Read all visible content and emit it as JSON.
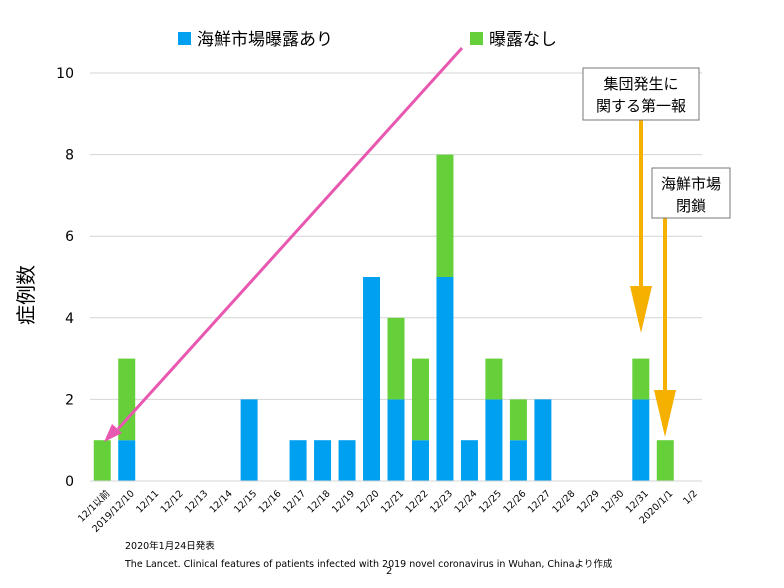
{
  "chart_data": {
    "type": "bar",
    "stacked": true,
    "ylabel": "症例数",
    "ylim": [
      0,
      10
    ],
    "yticks": [
      0,
      2,
      4,
      6,
      8,
      10
    ],
    "grid": true,
    "legend_position": "top",
    "categories": [
      "12/1以前",
      "2019/12/10",
      "12/11",
      "12/12",
      "12/13",
      "12/14",
      "12/15",
      "12/16",
      "12/17",
      "12/18",
      "12/19",
      "12/20",
      "12/21",
      "12/22",
      "12/23",
      "12/24",
      "12/25",
      "12/26",
      "12/27",
      "12/28",
      "12/29",
      "12/30",
      "12/31",
      "2020/1/1",
      "1/2"
    ],
    "series": [
      {
        "name": "海鮮市場曝露あり",
        "color": "#00a0f0",
        "values": [
          0,
          1,
          0,
          0,
          0,
          0,
          2,
          0,
          1,
          1,
          1,
          5,
          2,
          1,
          5,
          1,
          2,
          1,
          2,
          0,
          0,
          0,
          2,
          0,
          0
        ]
      },
      {
        "name": "曝露なし",
        "color": "#66d03a",
        "values": [
          1,
          2,
          0,
          0,
          0,
          0,
          0,
          0,
          0,
          0,
          0,
          0,
          2,
          2,
          3,
          0,
          1,
          1,
          0,
          0,
          0,
          0,
          1,
          1,
          0
        ]
      }
    ],
    "annotations": [
      {
        "text_lines": [
          "集団発生に",
          "関する第一報"
        ],
        "color": "#f5b000",
        "category": "12/31"
      },
      {
        "text_lines": [
          "海鮮市場",
          "閉鎖"
        ],
        "color": "#f5b000",
        "category": "2020/1/1"
      }
    ]
  },
  "footnotes": {
    "date": "2020年1月24日発表",
    "source": "The Lancet. Clinical features of patients infected with 2019 novel coronavirus in Wuhan, Chinaより作成",
    "page": "2"
  }
}
